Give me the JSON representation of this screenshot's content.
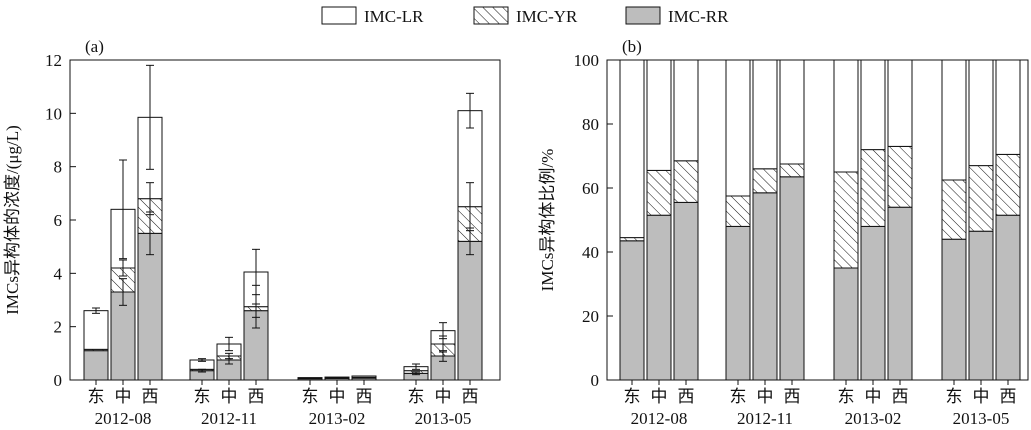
{
  "legend": {
    "items": [
      {
        "label": "IMC-LR",
        "fill": "#ffffff",
        "pattern": "none"
      },
      {
        "label": "IMC-YR",
        "fill": "#ffffff",
        "pattern": "hatch"
      },
      {
        "label": "IMC-RR",
        "fill": "#bdbdbd",
        "pattern": "none"
      }
    ]
  },
  "chart_data": [
    {
      "type": "bar",
      "stacked": true,
      "panel_label": "(a)",
      "ylabel": "IMCs异构体的浓度/(μg/L)",
      "ylim": [
        0,
        12
      ],
      "yticks": [
        0,
        2,
        4,
        6,
        8,
        10,
        12
      ],
      "groups": [
        "2012-08",
        "2012-11",
        "2013-02",
        "2013-05"
      ],
      "sites": [
        "东",
        "中",
        "西"
      ],
      "series": [
        {
          "name": "IMC-RR",
          "values": [
            [
              1.1,
              3.3,
              5.5
            ],
            [
              0.35,
              0.75,
              2.6
            ],
            [
              0.05,
              0.06,
              0.07
            ],
            [
              0.25,
              0.9,
              5.2
            ]
          ]
        },
        {
          "name": "IMC-YR",
          "values": [
            [
              0.05,
              0.9,
              1.3
            ],
            [
              0.05,
              0.15,
              0.15
            ],
            [
              0.02,
              0.02,
              0.03
            ],
            [
              0.1,
              0.45,
              1.3
            ]
          ]
        },
        {
          "name": "IMC-LR",
          "values": [
            [
              1.45,
              2.2,
              3.05
            ],
            [
              0.35,
              0.45,
              1.3
            ],
            [
              0.02,
              0.03,
              0.05
            ],
            [
              0.15,
              0.5,
              3.6
            ]
          ]
        }
      ],
      "error_bars": {
        "IMC-RR": [
          [
            0.03,
            0.5,
            0.8
          ],
          [
            0.05,
            0.15,
            0.25
          ],
          [
            0.01,
            0.01,
            0.01
          ],
          [
            0.05,
            0.2,
            0.5
          ]
        ],
        "IMC-YR": [
          [
            0.02,
            0.3,
            0.6
          ],
          [
            0.03,
            0.1,
            0.8
          ],
          [
            0.01,
            0.01,
            0.01
          ],
          [
            0.03,
            0.3,
            0.9
          ]
        ],
        "IMC-LR": [
          [
            0.1,
            1.85,
            1.95
          ],
          [
            0.05,
            0.25,
            0.85
          ],
          [
            0.01,
            0.01,
            0.01
          ],
          [
            0.1,
            0.3,
            0.65
          ]
        ]
      }
    },
    {
      "type": "bar",
      "stacked": true,
      "panel_label": "(b)",
      "ylabel": "IMCs异构体比例/%",
      "ylim": [
        0,
        100
      ],
      "yticks": [
        0,
        20,
        40,
        60,
        80,
        100
      ],
      "groups": [
        "2012-08",
        "2012-11",
        "2013-02",
        "2013-05"
      ],
      "sites": [
        "东",
        "中",
        "西"
      ],
      "series": [
        {
          "name": "IMC-RR",
          "values": [
            [
              43.5,
              51.5,
              55.5
            ],
            [
              48,
              58.5,
              63.5
            ],
            [
              35,
              48,
              54
            ],
            [
              44,
              46.5,
              51.5
            ]
          ]
        },
        {
          "name": "IMC-YR",
          "values": [
            [
              1,
              14,
              13
            ],
            [
              9.5,
              7.5,
              4
            ],
            [
              30,
              24,
              19
            ],
            [
              18.5,
              20.5,
              19
            ]
          ]
        },
        {
          "name": "IMC-LR",
          "values": [
            [
              55.5,
              34.5,
              31.5
            ],
            [
              42.5,
              34,
              32.5
            ],
            [
              35,
              28,
              27
            ],
            [
              37.5,
              33,
              29.5
            ]
          ]
        }
      ]
    }
  ]
}
